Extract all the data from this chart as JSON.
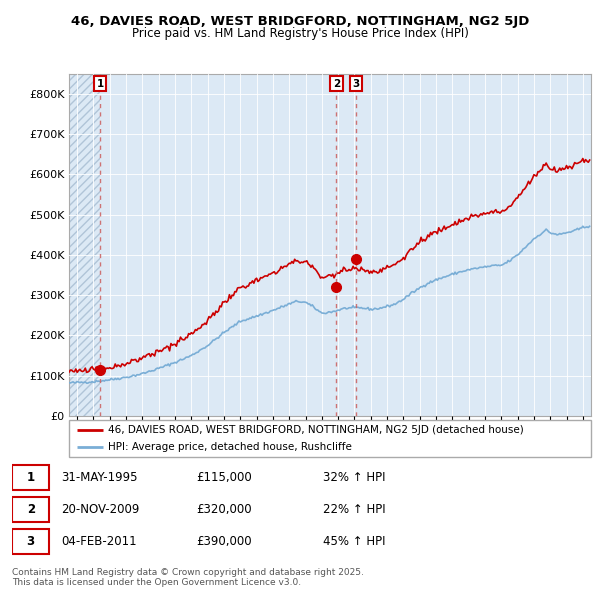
{
  "title_line1": "46, DAVIES ROAD, WEST BRIDGFORD, NOTTINGHAM, NG2 5JD",
  "title_line2": "Price paid vs. HM Land Registry's House Price Index (HPI)",
  "background_color": "#ffffff",
  "plot_bg_color": "#dce9f5",
  "grid_color": "#ffffff",
  "sale_dates_num": [
    1995.415,
    2009.893,
    2011.087
  ],
  "sale_prices": [
    115000,
    320000,
    390000
  ],
  "sale_labels": [
    "1",
    "2",
    "3"
  ],
  "red_line_color": "#cc0000",
  "blue_line_color": "#7aaed6",
  "dashed_line_color": "#cc6666",
  "ylim": [
    0,
    850000
  ],
  "yticks": [
    0,
    100000,
    200000,
    300000,
    400000,
    500000,
    600000,
    700000,
    800000
  ],
  "ytick_labels": [
    "£0",
    "£100K",
    "£200K",
    "£300K",
    "£400K",
    "£500K",
    "£600K",
    "£700K",
    "£800K"
  ],
  "xlim_start": 1993.5,
  "xlim_end": 2025.5,
  "legend_line1": "46, DAVIES ROAD, WEST BRIDGFORD, NOTTINGHAM, NG2 5JD (detached house)",
  "legend_line2": "HPI: Average price, detached house, Rushcliffe",
  "table_data": [
    [
      "1",
      "31-MAY-1995",
      "£115,000",
      "32% ↑ HPI"
    ],
    [
      "2",
      "20-NOV-2009",
      "£320,000",
      "22% ↑ HPI"
    ],
    [
      "3",
      "04-FEB-2011",
      "£390,000",
      "45% ↑ HPI"
    ]
  ],
  "footer": "Contains HM Land Registry data © Crown copyright and database right 2025.\nThis data is licensed under the Open Government Licence v3.0.",
  "hpi_scale_factor_1": 1.3217,
  "hpi_base_at_sale1": 87000
}
